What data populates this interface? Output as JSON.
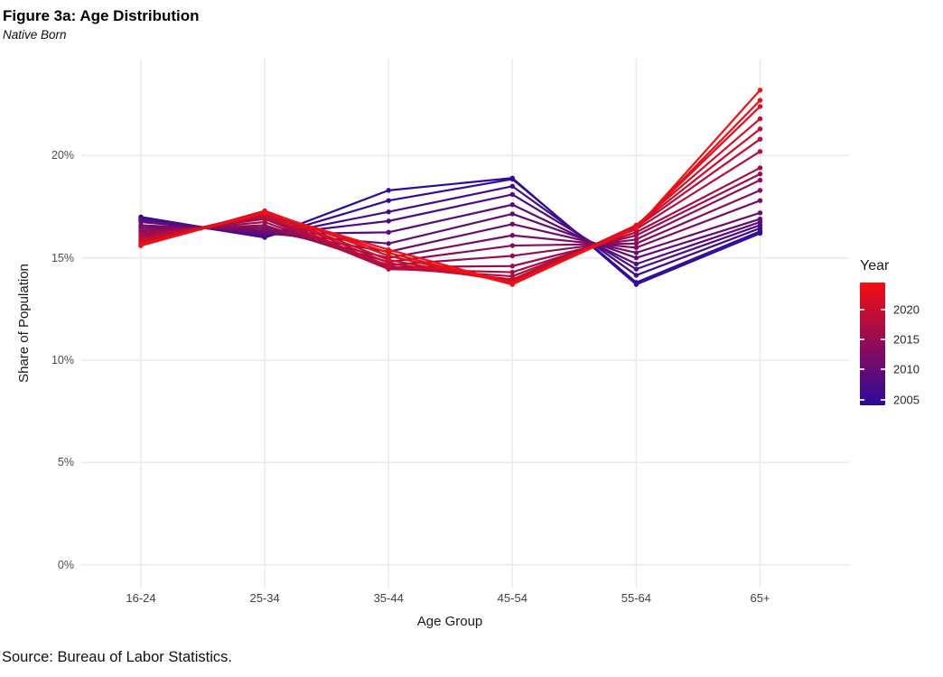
{
  "figure": {
    "title": "Figure 3a: Age Distribution",
    "subtitle": "Native Born",
    "source": "Source: Bureau of Labor Statistics."
  },
  "chart_data": {
    "type": "line",
    "title": "Figure 3a: Age Distribution",
    "subtitle": "Native Born",
    "xlabel": "Age Group",
    "ylabel": "Share of Population",
    "categories": [
      "16-24",
      "25-34",
      "35-44",
      "45-54",
      "55-64",
      "65+"
    ],
    "y_tick_values": [
      0,
      5,
      10,
      15,
      20
    ],
    "y_tick_labels": [
      "0%",
      "5%",
      "10%",
      "15%",
      "20%"
    ],
    "ylim": [
      0,
      24.7
    ],
    "grid": "major gridlines only, light gray on white (theme_minimal)",
    "unit": "percent share of population",
    "legend": {
      "title": "Year",
      "position": "right",
      "tick_labels": [
        "2020",
        "2015",
        "2010",
        "2005"
      ],
      "min_year": 2005,
      "max_year": 2023,
      "color_low": "#2b0a9c",
      "color_high": "#f50f10"
    },
    "series": [
      {
        "name": "2005",
        "values": [
          17.0,
          16.0,
          18.3,
          18.9,
          13.7,
          16.2
        ]
      },
      {
        "name": "2006",
        "values": [
          16.95,
          16.0,
          17.8,
          18.85,
          13.8,
          16.3
        ]
      },
      {
        "name": "2007",
        "values": [
          16.9,
          16.05,
          17.25,
          18.5,
          14.15,
          16.45
        ]
      },
      {
        "name": "2008",
        "values": [
          16.9,
          16.1,
          16.8,
          18.1,
          14.45,
          16.6
        ]
      },
      {
        "name": "2009",
        "values": [
          16.85,
          16.15,
          16.25,
          17.6,
          14.7,
          16.75
        ]
      },
      {
        "name": "2010",
        "values": [
          16.75,
          16.2,
          15.7,
          17.15,
          15.0,
          16.9
        ]
      },
      {
        "name": "2011",
        "values": [
          16.6,
          16.3,
          15.3,
          16.65,
          15.25,
          17.2
        ]
      },
      {
        "name": "2012",
        "values": [
          16.5,
          16.4,
          15.0,
          16.1,
          15.5,
          17.8
        ]
      },
      {
        "name": "2013",
        "values": [
          16.4,
          16.5,
          14.8,
          15.6,
          15.7,
          18.3
        ]
      },
      {
        "name": "2014",
        "values": [
          16.3,
          16.6,
          14.65,
          15.1,
          15.9,
          18.8
        ]
      },
      {
        "name": "2015",
        "values": [
          16.2,
          16.75,
          14.55,
          14.6,
          16.1,
          19.1
        ]
      },
      {
        "name": "2016",
        "values": [
          16.1,
          16.9,
          14.45,
          14.3,
          16.25,
          19.4
        ]
      },
      {
        "name": "2017",
        "values": [
          16.0,
          17.0,
          14.5,
          14.1,
          16.4,
          20.2
        ]
      },
      {
        "name": "2018",
        "values": [
          15.9,
          17.1,
          14.6,
          13.95,
          16.5,
          20.8
        ]
      },
      {
        "name": "2019",
        "values": [
          15.8,
          17.2,
          14.75,
          13.85,
          16.55,
          21.3
        ]
      },
      {
        "name": "2020",
        "values": [
          15.7,
          17.25,
          14.9,
          13.8,
          16.6,
          21.8
        ]
      },
      {
        "name": "2021",
        "values": [
          15.6,
          17.3,
          15.1,
          13.75,
          16.55,
          22.4
        ]
      },
      {
        "name": "2022",
        "values": [
          15.6,
          17.25,
          15.25,
          13.7,
          16.5,
          22.7
        ]
      },
      {
        "name": "2023",
        "values": [
          15.65,
          17.2,
          15.4,
          13.75,
          16.45,
          23.2
        ]
      }
    ]
  }
}
